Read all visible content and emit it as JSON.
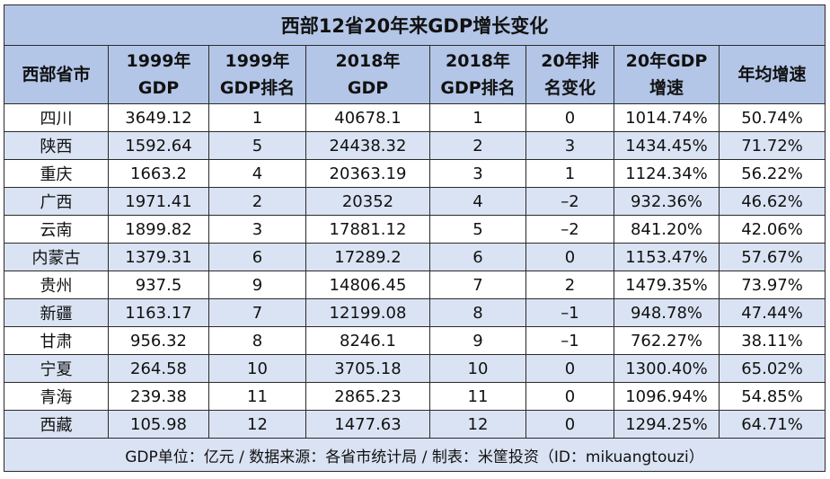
{
  "table": {
    "title": "西部12省20年来GDP增长变化",
    "header": [
      [
        "西部省市"
      ],
      [
        "1999年",
        "GDP"
      ],
      [
        "1999年",
        "GDP排名"
      ],
      [
        "2018年",
        "GDP"
      ],
      [
        "2018年",
        "GDP排名"
      ],
      [
        "20年排",
        "名变化"
      ],
      [
        "20年GDP",
        "增速"
      ],
      [
        "年均增速"
      ]
    ],
    "rows": [
      [
        "四川",
        "3649.12",
        "1",
        "40678.1",
        "1",
        "0",
        "1014.74%",
        "50.74%"
      ],
      [
        "陕西",
        "1592.64",
        "5",
        "24438.32",
        "2",
        "3",
        "1434.45%",
        "71.72%"
      ],
      [
        "重庆",
        "1663.2",
        "4",
        "20363.19",
        "3",
        "1",
        "1124.34%",
        "56.22%"
      ],
      [
        "广西",
        "1971.41",
        "2",
        "20352",
        "4",
        "–2",
        "932.36%",
        "46.62%"
      ],
      [
        "云南",
        "1899.82",
        "3",
        "17881.12",
        "5",
        "–2",
        "841.20%",
        "42.06%"
      ],
      [
        "内蒙古",
        "1379.31",
        "6",
        "17289.2",
        "6",
        "0",
        "1153.47%",
        "57.67%"
      ],
      [
        "贵州",
        "937.5",
        "9",
        "14806.45",
        "7",
        "2",
        "1479.35%",
        "73.97%"
      ],
      [
        "新疆",
        "1163.17",
        "7",
        "12199.08",
        "8",
        "–1",
        "948.78%",
        "47.44%"
      ],
      [
        "甘肃",
        "956.32",
        "8",
        "8246.1",
        "9",
        "–1",
        "762.27%",
        "38.11%"
      ],
      [
        "宁夏",
        "264.58",
        "10",
        "3705.18",
        "10",
        "0",
        "1300.40%",
        "65.02%"
      ],
      [
        "青海",
        "239.38",
        "11",
        "2865.23",
        "11",
        "0",
        "1096.94%",
        "54.85%"
      ],
      [
        "西藏",
        "105.98",
        "12",
        "1477.63",
        "12",
        "0",
        "1294.25%",
        "64.71%"
      ]
    ],
    "footer": "GDP单位：亿元 / 数据来源：各省市统计局 / 制表：米筐投资（ID：mikuangtouzi）"
  }
}
